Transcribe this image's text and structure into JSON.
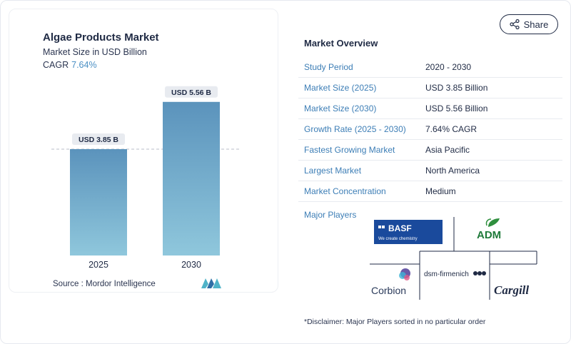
{
  "share": {
    "label": "Share",
    "icon": "share-icon"
  },
  "chart": {
    "title": "Algae Products Market",
    "subtitle": "Market Size in USD Billion",
    "cagr_label": "CAGR",
    "cagr_value": "7.64%",
    "source": "Source :  Mordor Intelligence",
    "bar_labels": [
      "USD 3.85 B",
      "USD 5.56 B"
    ]
  },
  "chart_data": {
    "type": "bar",
    "categories": [
      "2025",
      "2030"
    ],
    "values": [
      3.85,
      5.56
    ],
    "title": "Algae Products Market",
    "ylabel": "Market Size in USD Billion",
    "ylim": [
      0,
      6.2
    ],
    "grid": false,
    "reference_line": 3.85,
    "colors": {
      "bar_top": "#5b93bc",
      "bar_bottom": "#8fc7dc"
    }
  },
  "overview": {
    "title": "Market Overview",
    "rows": [
      {
        "label": "Study Period",
        "value": "2020 - 2030"
      },
      {
        "label": "Market Size (2025)",
        "value": "USD 3.85 Billion"
      },
      {
        "label": "Market Size (2030)",
        "value": "USD 5.56 Billion"
      },
      {
        "label": "Growth Rate (2025 - 2030)",
        "value": "7.64% CAGR"
      },
      {
        "label": "Fastest Growing Market",
        "value": "Asia Pacific"
      },
      {
        "label": "Largest Market",
        "value": "North America"
      },
      {
        "label": "Market Concentration",
        "value": "Medium"
      }
    ],
    "players_label": "Major Players",
    "players": [
      "BASF",
      "ADM",
      "Corbion",
      "dsm-firmenich",
      "Cargill"
    ],
    "basf_tagline": "We create chemistry",
    "disclaimer": "*Disclaimer: Major Players sorted in no particular order"
  }
}
